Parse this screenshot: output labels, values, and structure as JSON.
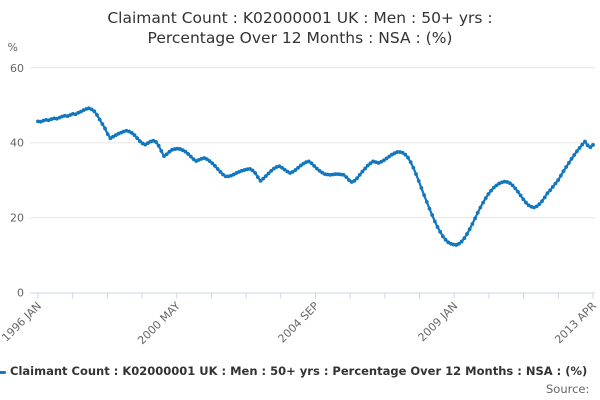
{
  "title": {
    "line1": "Claimant Count : K02000001 UK : Men : 50+ yrs :",
    "line2": "Percentage Over 12 Months : NSA : (%)"
  },
  "legend": {
    "series_label": "Claimant Count : K02000001 UK : Men : 50+ yrs : Percentage Over 12 Months : NSA : (%)"
  },
  "source": {
    "label": "Source:"
  },
  "colors": {
    "line": "#1177be",
    "grid": "#e6e6e6",
    "axis": "#ccd6eb",
    "label": "#666666",
    "title": "#333333"
  },
  "chart_data": {
    "type": "line",
    "title": "Claimant Count : K02000001 UK : Men : 50+ yrs : Percentage Over 12 Months : NSA : (%)",
    "frequency": "monthly",
    "x_start": "1996 JAN",
    "x_end": "2013 APR",
    "x_tick_labels": [
      "1996 JAN",
      "2000 MAY",
      "2004 SEP",
      "2009 JAN",
      "2013 APR"
    ],
    "x_minor_tick_count": 17,
    "ylabel": "%",
    "ylim": [
      0,
      60
    ],
    "y_ticks": [
      0,
      20,
      40,
      60
    ],
    "grid": "horizontal",
    "legend_position": "bottom-left",
    "values": [
      45.7,
      45.6,
      45.9,
      46.1,
      46.0,
      46.3,
      46.5,
      46.4,
      46.7,
      47.0,
      47.2,
      47.1,
      47.4,
      47.7,
      47.6,
      48.0,
      48.3,
      48.7,
      49.0,
      49.2,
      48.9,
      48.4,
      47.4,
      46.2,
      45.0,
      43.8,
      42.3,
      41.2,
      41.6,
      42.0,
      42.4,
      42.7,
      43.0,
      43.2,
      43.0,
      42.6,
      42.0,
      41.2,
      40.4,
      39.8,
      39.5,
      39.9,
      40.3,
      40.5,
      40.2,
      39.2,
      37.8,
      36.4,
      36.9,
      37.6,
      38.1,
      38.3,
      38.4,
      38.3,
      38.0,
      37.6,
      37.0,
      36.3,
      35.6,
      35.1,
      35.4,
      35.7,
      35.9,
      35.6,
      35.1,
      34.5,
      33.8,
      33.0,
      32.2,
      31.5,
      31.0,
      31.0,
      31.2,
      31.5,
      31.9,
      32.2,
      32.5,
      32.7,
      32.9,
      33.0,
      32.6,
      31.9,
      30.8,
      29.8,
      30.4,
      31.1,
      31.8,
      32.5,
      33.1,
      33.5,
      33.7,
      33.3,
      32.8,
      32.3,
      31.9,
      32.2,
      32.7,
      33.3,
      33.9,
      34.4,
      34.8,
      35.0,
      34.5,
      33.8,
      33.1,
      32.5,
      32.0,
      31.6,
      31.5,
      31.4,
      31.5,
      31.6,
      31.6,
      31.5,
      31.4,
      30.8,
      30.0,
      29.5,
      29.8,
      30.5,
      31.4,
      32.3,
      33.1,
      33.9,
      34.5,
      35.0,
      34.8,
      34.6,
      34.9,
      35.3,
      35.8,
      36.3,
      36.8,
      37.2,
      37.5,
      37.5,
      37.3,
      36.8,
      36.0,
      34.8,
      33.3,
      31.6,
      29.8,
      27.9,
      26.0,
      24.2,
      22.4,
      20.7,
      19.0,
      17.5,
      16.2,
      15.0,
      14.1,
      13.4,
      13.0,
      12.8,
      12.7,
      13.0,
      13.6,
      14.5,
      15.6,
      16.9,
      18.3,
      19.8,
      21.3,
      22.7,
      24.0,
      25.2,
      26.3,
      27.2,
      28.0,
      28.6,
      29.1,
      29.4,
      29.6,
      29.5,
      29.2,
      28.6,
      27.8,
      26.9,
      25.9,
      24.9,
      24.0,
      23.3,
      22.9,
      22.7,
      23.0,
      23.6,
      24.4,
      25.4,
      26.5,
      27.3,
      28.2,
      29.1,
      30.0,
      31.2,
      32.4,
      33.5,
      34.6,
      35.7,
      36.7,
      37.7,
      38.6,
      39.5,
      40.3,
      39.3,
      38.8,
      39.4
    ]
  }
}
